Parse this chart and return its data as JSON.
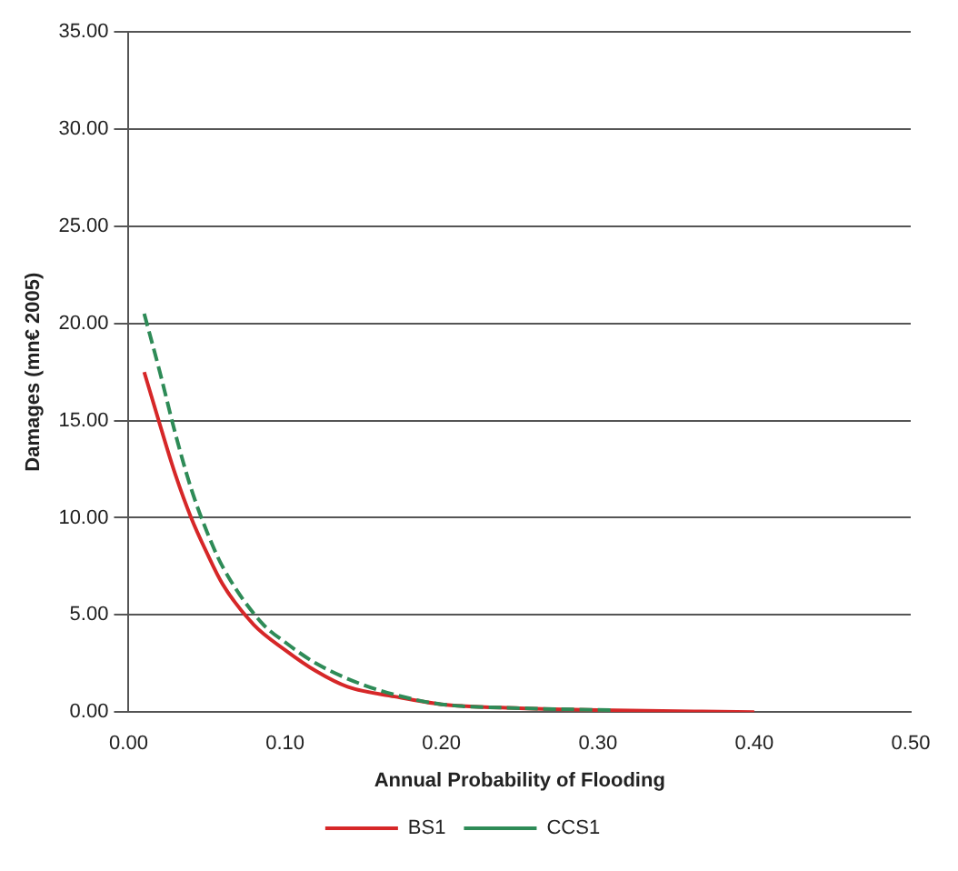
{
  "chart_data": {
    "type": "line",
    "xlabel": "Annual Probability of Flooding",
    "ylabel": "Damages (mn€ 2005)",
    "xlim": [
      0,
      0.5
    ],
    "ylim": [
      0,
      35
    ],
    "xticks": [
      {
        "value": 0,
        "label": "0.00"
      },
      {
        "value": 0.1,
        "label": "0.10"
      },
      {
        "value": 0.2,
        "label": "0.20"
      },
      {
        "value": 0.3,
        "label": "0.30"
      },
      {
        "value": 0.4,
        "label": "0.40"
      },
      {
        "value": 0.5,
        "label": "0.50"
      }
    ],
    "yticks": [
      {
        "value": 0,
        "label": "0.00"
      },
      {
        "value": 5,
        "label": "5.00"
      },
      {
        "value": 10,
        "label": "10.00"
      },
      {
        "value": 15,
        "label": "15.00"
      },
      {
        "value": 20,
        "label": "20.00"
      },
      {
        "value": 25,
        "label": "25.00"
      },
      {
        "value": 30,
        "label": "30.00"
      },
      {
        "value": 35,
        "label": "35.00"
      }
    ],
    "grid": "y",
    "legend": "bottom",
    "marker": "none",
    "series": [
      {
        "name": "BS1",
        "color": "#d62728",
        "line_style": "solid",
        "x": [
          0.01,
          0.02,
          0.03,
          0.04,
          0.05,
          0.06,
          0.08,
          0.1,
          0.12,
          0.14,
          0.17,
          0.2,
          0.25,
          0.3,
          0.4
        ],
        "values": [
          17.5,
          14.8,
          12.2,
          10,
          8.2,
          6.6,
          4.5,
          3.2,
          2.1,
          1.3,
          0.8,
          0.4,
          0.2,
          0.1,
          0
        ]
      },
      {
        "name": "CCS1",
        "color": "#2e8b57",
        "line_style": "dashed",
        "x": [
          0.01,
          0.02,
          0.03,
          0.04,
          0.05,
          0.06,
          0.085,
          0.1,
          0.12,
          0.15,
          0.18,
          0.2,
          0.25,
          0.31
        ],
        "values": [
          20.5,
          17.5,
          14.3,
          11.5,
          9.3,
          7.5,
          4.6,
          3.6,
          2.5,
          1.4,
          0.7,
          0.4,
          0.2,
          0.1
        ]
      }
    ]
  }
}
